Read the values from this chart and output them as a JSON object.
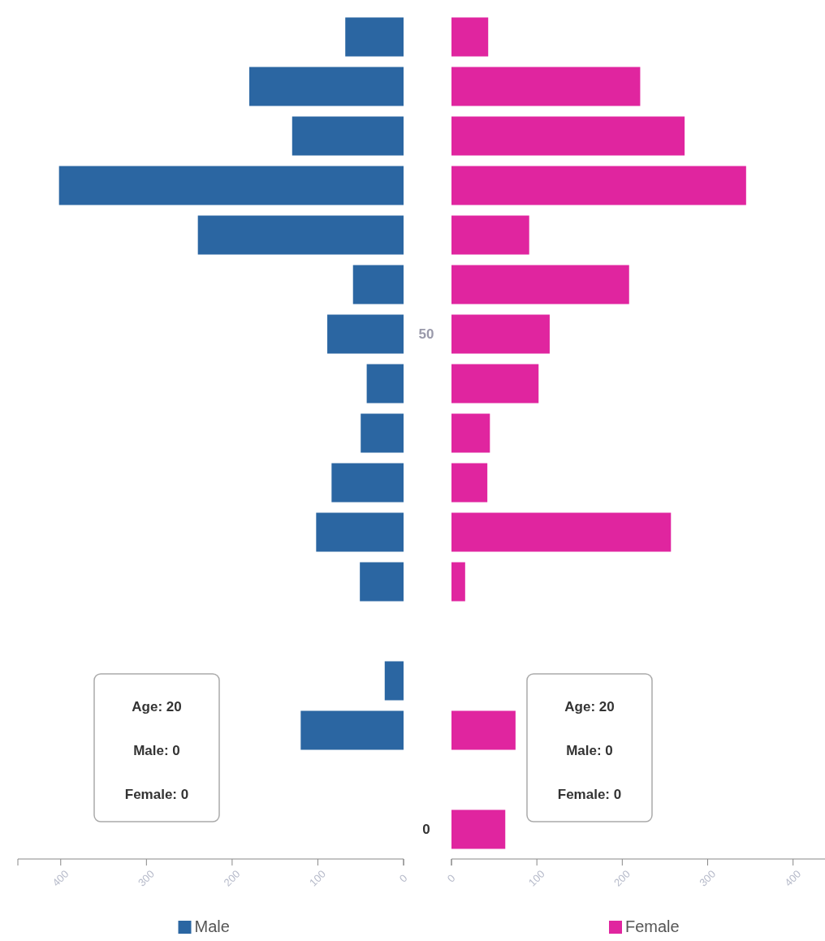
{
  "chart_data": [
    {
      "type": "bar",
      "orientation": "horizontal",
      "categories": [
        null,
        null,
        null,
        null,
        null,
        null,
        "50",
        null,
        null,
        null,
        null,
        null,
        null,
        null,
        null,
        null,
        "0"
      ],
      "series": [
        {
          "name": "Male",
          "color": "#2b66a2",
          "values": [
            68,
            180,
            130,
            402,
            240,
            59,
            89,
            43,
            50,
            84,
            102,
            51,
            0,
            22,
            120,
            0,
            0
          ]
        }
      ],
      "xlim": [
        450,
        0
      ],
      "xticks": [
        400,
        300,
        200,
        100,
        0
      ],
      "legend": "bottom",
      "annotations": [
        "Age: 20",
        "Male: 0",
        "Female: 0"
      ]
    },
    {
      "type": "bar",
      "orientation": "horizontal",
      "categories": [
        null,
        null,
        null,
        null,
        null,
        null,
        null,
        null,
        null,
        null,
        null,
        null,
        null,
        null,
        null,
        null,
        null
      ],
      "series": [
        {
          "name": "Female",
          "color": "#e0259f",
          "values": [
            43,
            221,
            273,
            345,
            91,
            208,
            115,
            102,
            45,
            42,
            257,
            16,
            0,
            0,
            75,
            0,
            63
          ]
        }
      ],
      "xlim": [
        0,
        445
      ],
      "xticks": [
        0,
        100,
        200,
        300,
        400
      ],
      "legend": "bottom",
      "annotations": [
        "Age: 20",
        "Male: 0",
        "Female: 0"
      ]
    }
  ]
}
